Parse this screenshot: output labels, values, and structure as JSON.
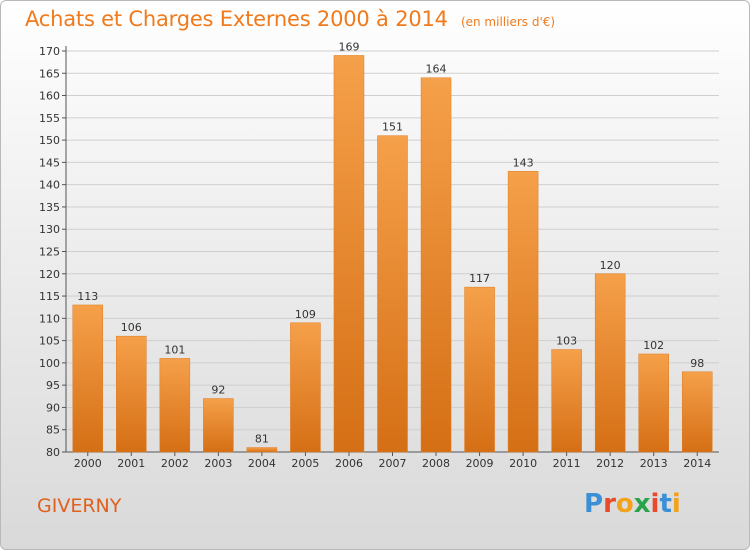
{
  "chart_data": {
    "type": "bar",
    "title": "Achats et Charges Externes 2000 à 2014",
    "subtitle": "(en milliers d'€)",
    "categories": [
      "2000",
      "2001",
      "2002",
      "2003",
      "2004",
      "2005",
      "2006",
      "2007",
      "2008",
      "2009",
      "2010",
      "2011",
      "2012",
      "2013",
      "2014"
    ],
    "values": [
      113,
      106,
      101,
      92,
      81,
      109,
      169,
      151,
      164,
      117,
      143,
      103,
      120,
      102,
      98
    ],
    "ylim": [
      80,
      170
    ],
    "yticks": [
      80,
      85,
      90,
      95,
      100,
      105,
      110,
      115,
      120,
      125,
      130,
      135,
      140,
      145,
      150,
      155,
      160,
      165,
      170
    ],
    "grid": true,
    "bar_color": "#f08a2a"
  },
  "location": "GIVERNY",
  "logo": {
    "letters": [
      {
        "ch": "P",
        "color": "#3a8fd6"
      },
      {
        "ch": "r",
        "color": "#e84a2a"
      },
      {
        "ch": "o",
        "color": "#f2a21b"
      },
      {
        "ch": "x",
        "color": "#2aa44a"
      },
      {
        "ch": "i",
        "color": "#e84a2a"
      },
      {
        "ch": "t",
        "color": "#3a8fd6"
      },
      {
        "ch": "i",
        "color": "#f2a21b"
      }
    ]
  }
}
